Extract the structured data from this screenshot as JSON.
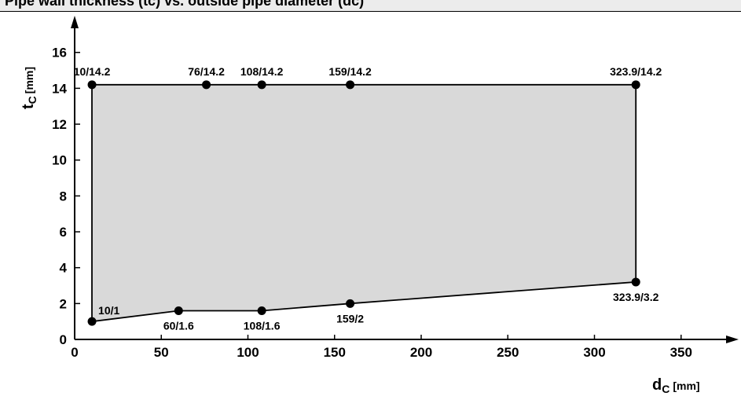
{
  "header": {
    "title": "Pipe wall thickness (tc) vs. outside pipe diameter (dc)"
  },
  "chart_data": {
    "type": "area",
    "title": "",
    "xlabel": {
      "main": "d",
      "sub": "C",
      "unit": "[mm]"
    },
    "ylabel": {
      "main": "t",
      "sub": "C",
      "unit": "[mm]"
    },
    "xlim": [
      0,
      380
    ],
    "ylim": [
      0,
      17
    ],
    "xticks": [
      0,
      50,
      100,
      150,
      200,
      250,
      300,
      350
    ],
    "yticks": [
      0,
      2,
      4,
      6,
      8,
      10,
      12,
      14,
      16
    ],
    "grid": false,
    "fill_color": "#d9d9d9",
    "points": [
      {
        "x": 10,
        "y": 14.2,
        "label": "10/14.2",
        "pos": "above"
      },
      {
        "x": 76,
        "y": 14.2,
        "label": "76/14.2",
        "pos": "above"
      },
      {
        "x": 108,
        "y": 14.2,
        "label": "108/14.2",
        "pos": "above"
      },
      {
        "x": 159,
        "y": 14.2,
        "label": "159/14.2",
        "pos": "above"
      },
      {
        "x": 323.9,
        "y": 14.2,
        "label": "323.9/14.2",
        "pos": "above"
      },
      {
        "x": 323.9,
        "y": 3.2,
        "label": "323.9/3.2",
        "pos": "below"
      },
      {
        "x": 159,
        "y": 2,
        "label": "159/2",
        "pos": "below"
      },
      {
        "x": 108,
        "y": 1.6,
        "label": "108/1.6",
        "pos": "below"
      },
      {
        "x": 60,
        "y": 1.6,
        "label": "60/1.6",
        "pos": "below"
      },
      {
        "x": 10,
        "y": 1,
        "label": "10/1",
        "pos": "above-right"
      }
    ]
  }
}
